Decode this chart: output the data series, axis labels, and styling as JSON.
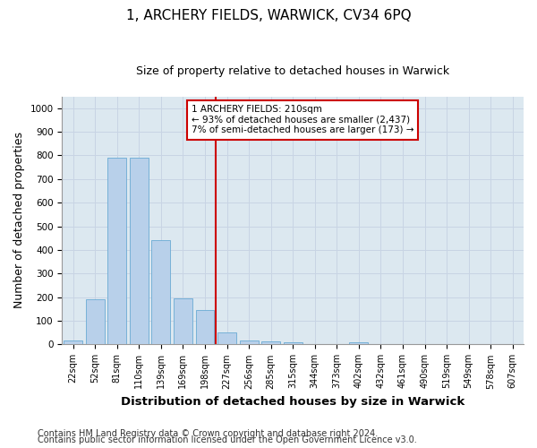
{
  "title": "1, ARCHERY FIELDS, WARWICK, CV34 6PQ",
  "subtitle": "Size of property relative to detached houses in Warwick",
  "xlabel": "Distribution of detached houses by size in Warwick",
  "ylabel": "Number of detached properties",
  "footnote1": "Contains HM Land Registry data © Crown copyright and database right 2024.",
  "footnote2": "Contains public sector information licensed under the Open Government Licence v3.0.",
  "bar_labels": [
    "22sqm",
    "52sqm",
    "81sqm",
    "110sqm",
    "139sqm",
    "169sqm",
    "198sqm",
    "227sqm",
    "256sqm",
    "285sqm",
    "315sqm",
    "344sqm",
    "373sqm",
    "402sqm",
    "432sqm",
    "461sqm",
    "490sqm",
    "519sqm",
    "549sqm",
    "578sqm",
    "607sqm"
  ],
  "bar_values": [
    15,
    190,
    790,
    790,
    440,
    195,
    145,
    50,
    15,
    12,
    8,
    0,
    0,
    8,
    0,
    0,
    0,
    0,
    0,
    0,
    0
  ],
  "bar_color": "#b8d0ea",
  "bar_edge_color": "#6aaad4",
  "vline_x": 6.5,
  "vline_color": "#cc0000",
  "annotation_line1": "1 ARCHERY FIELDS: 210sqm",
  "annotation_line2": "← 93% of detached houses are smaller (2,437)",
  "annotation_line3": "7% of semi-detached houses are larger (173) →",
  "annotation_box_facecolor": "#ffffff",
  "annotation_box_edgecolor": "#cc0000",
  "ylim": [
    0,
    1050
  ],
  "yticks": [
    0,
    100,
    200,
    300,
    400,
    500,
    600,
    700,
    800,
    900,
    1000
  ],
  "grid_color": "#c8d4e4",
  "bg_color": "#dce8f0",
  "title_fontsize": 11,
  "subtitle_fontsize": 9,
  "axis_label_fontsize": 9,
  "tick_fontsize": 7,
  "footnote_fontsize": 7
}
